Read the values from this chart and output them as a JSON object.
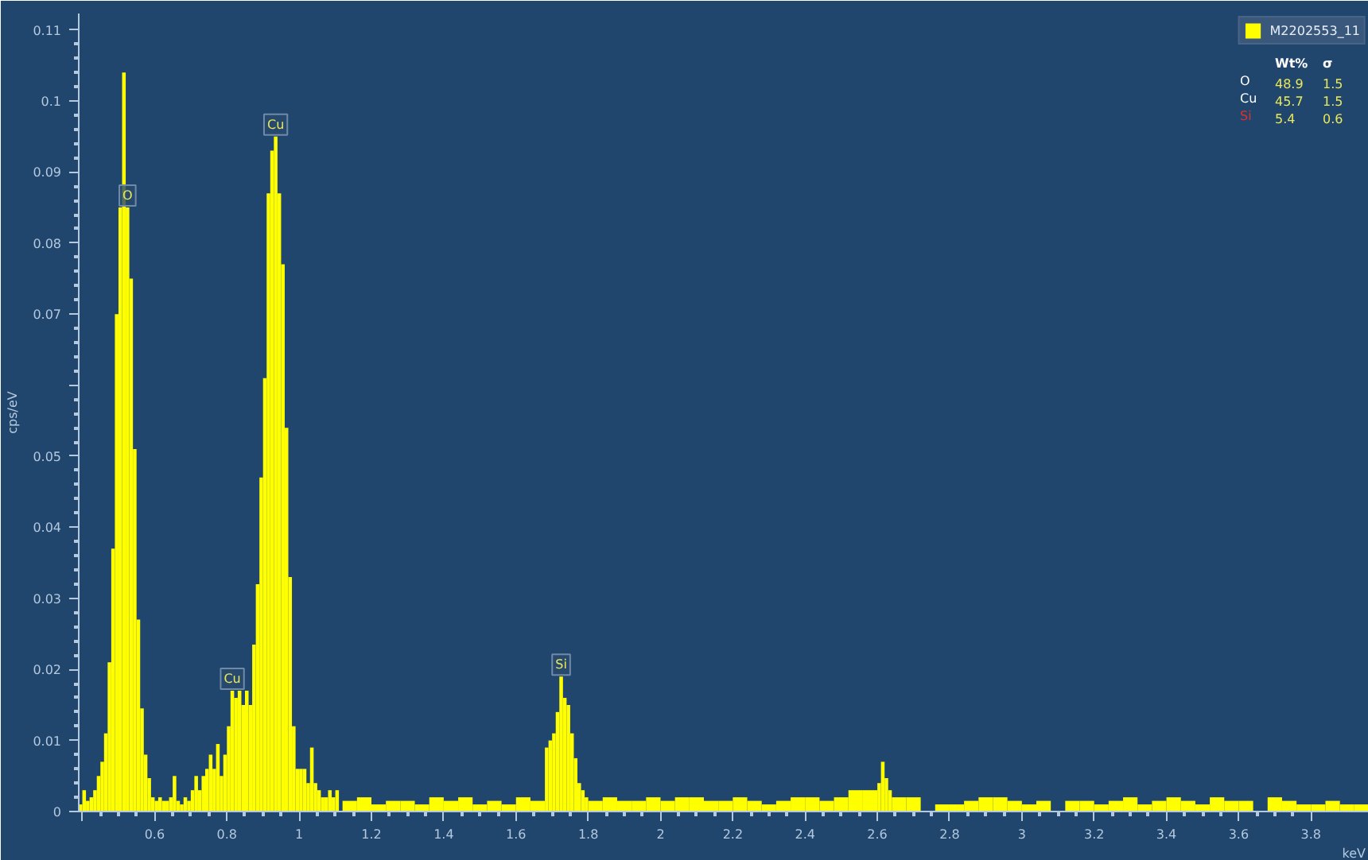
{
  "chart_data": {
    "type": "histogram",
    "xlabel": "keV",
    "ylabel": "cps/eV",
    "bins": [
      0.39,
      0.4,
      0.41,
      0.42,
      0.43,
      0.44,
      0.45,
      0.46,
      0.47,
      0.48,
      0.49,
      0.5,
      0.51,
      0.52,
      0.53,
      0.54,
      0.55,
      0.56,
      0.57,
      0.58,
      0.59,
      0.6,
      0.61,
      0.62,
      0.63,
      0.64,
      0.65,
      0.66,
      0.67,
      0.68,
      0.69,
      0.7,
      0.71,
      0.72,
      0.73,
      0.74,
      0.75,
      0.76,
      0.77,
      0.78,
      0.79,
      0.8,
      0.81,
      0.82,
      0.83,
      0.84,
      0.85,
      0.86,
      0.87,
      0.88,
      0.89,
      0.9,
      0.91,
      0.92,
      0.93,
      0.94,
      0.95,
      0.96,
      0.97,
      0.98,
      0.99,
      1.0,
      1.01,
      1.02,
      1.03,
      1.04,
      1.05,
      1.06,
      1.07,
      1.08,
      1.09,
      1.1,
      1.11,
      1.12,
      1.16,
      1.2,
      1.24,
      1.28,
      1.32,
      1.36,
      1.4,
      1.44,
      1.48,
      1.52,
      1.56,
      1.6,
      1.64,
      1.68,
      1.69,
      1.7,
      1.71,
      1.72,
      1.73,
      1.74,
      1.75,
      1.76,
      1.77,
      1.78,
      1.79,
      1.8,
      1.84,
      1.88,
      1.92,
      1.96,
      2.0,
      2.04,
      2.08,
      2.12,
      2.16,
      2.2,
      2.24,
      2.28,
      2.32,
      2.36,
      2.4,
      2.44,
      2.48,
      2.52,
      2.56,
      2.6,
      2.61,
      2.62,
      2.63,
      2.64,
      2.68,
      2.72,
      2.76,
      2.8,
      2.84,
      2.88,
      2.92,
      2.96,
      3.0,
      3.04,
      3.08,
      3.12,
      3.16,
      3.2,
      3.24,
      3.28,
      3.32,
      3.36,
      3.4,
      3.44,
      3.48,
      3.52,
      3.56,
      3.6,
      3.64,
      3.68,
      3.72,
      3.76,
      3.8,
      3.84,
      3.88,
      3.92,
      3.96
    ],
    "series": [
      {
        "name": "M2202553_11",
        "color": "#ffff00",
        "values": [
          0.001,
          0.003,
          0.0015,
          0.002,
          0.003,
          0.005,
          0.007,
          0.011,
          0.021,
          0.037,
          0.07,
          0.085,
          0.104,
          0.085,
          0.075,
          0.051,
          0.027,
          0.0145,
          0.008,
          0.0047,
          0.002,
          0.0015,
          0.002,
          0.0015,
          0.0015,
          0.002,
          0.005,
          0.0015,
          0.001,
          0.002,
          0.0015,
          0.003,
          0.005,
          0.003,
          0.005,
          0.006,
          0.008,
          0.006,
          0.0095,
          0.005,
          0.008,
          0.012,
          0.017,
          0.016,
          0.017,
          0.015,
          0.017,
          0.015,
          0.0235,
          0.032,
          0.047,
          0.061,
          0.087,
          0.093,
          0.095,
          0.087,
          0.077,
          0.054,
          0.033,
          0.012,
          0.006,
          0.006,
          0.006,
          0.004,
          0.009,
          0.004,
          0.003,
          0.002,
          0.002,
          0.003,
          0.002,
          0.003,
          0,
          0.0015,
          0.002,
          0.001,
          0.0015,
          0.0015,
          0.001,
          0.002,
          0.0015,
          0.002,
          0.001,
          0.0015,
          0.001,
          0.002,
          0.0015,
          0.009,
          0.01,
          0.011,
          0.014,
          0.019,
          0.016,
          0.015,
          0.011,
          0.0075,
          0.004,
          0.003,
          0.002,
          0.0015,
          0.002,
          0.0015,
          0.0015,
          0.002,
          0.0015,
          0.002,
          0.002,
          0.0015,
          0.0015,
          0.002,
          0.0015,
          0.001,
          0.0015,
          0.002,
          0.002,
          0.0015,
          0.002,
          0.003,
          0.003,
          0.004,
          0.007,
          0.0047,
          0.003,
          0.002,
          0.002,
          0,
          0.001,
          0.001,
          0.0015,
          0.002,
          0.002,
          0.0015,
          0.001,
          0.0015,
          0,
          0.0015,
          0.0015,
          0.001,
          0.0015,
          0.002,
          0.001,
          0.0015,
          0.002,
          0.0015,
          0.001,
          0.002,
          0.0015,
          0.0015,
          0,
          0.002,
          0.0015,
          0.001,
          0.001,
          0.0015,
          0.001,
          0.001
        ]
      }
    ],
    "xlim": [
      0.39,
      3.96
    ],
    "ylim": [
      0,
      0.1123
    ],
    "xticks": [
      {
        "value": 0.4,
        "label": null
      },
      0.6,
      0.8,
      1,
      1.2,
      1.4,
      1.6,
      1.8,
      2,
      2.2,
      2.4,
      2.6,
      2.8,
      3,
      3.2,
      3.4,
      3.6,
      3.8
    ],
    "yticks": [
      0,
      0.01,
      0.02,
      0.03,
      0.04,
      0.05,
      {
        "value": 0.06,
        "label": null
      },
      0.07,
      0.08,
      0.09,
      0.1,
      0.11
    ],
    "grid": false,
    "legend": "top right",
    "annotations": [
      {
        "text": "O",
        "x": 0.525,
        "y": 0.085
      },
      {
        "text": "Cu",
        "x": 0.935,
        "y": 0.095
      },
      {
        "text": "Cu",
        "x": 0.815,
        "y": 0.017
      },
      {
        "text": "Si",
        "x": 1.725,
        "y": 0.019
      },
      "Wt%",
      "σ",
      "O",
      "48.9",
      "1.5",
      "Cu",
      "45.7",
      "1.5",
      "Si",
      "5.4",
      "0.6"
    ]
  }
}
